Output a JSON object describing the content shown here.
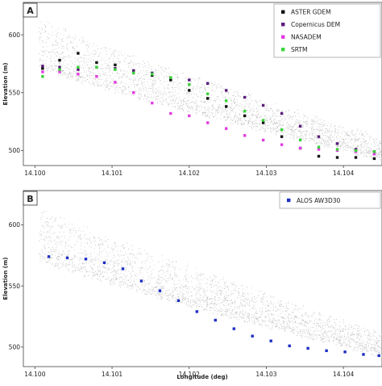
{
  "chart_data": [
    {
      "type": "scatter",
      "panel_label": "A",
      "ylabel": "Elevation (m)",
      "xlabel": "",
      "xlim": [
        14.09985,
        14.1045
      ],
      "ylim": [
        487,
        628
      ],
      "x_ticks": [
        "14.100",
        "14.101",
        "14.102",
        "14.103",
        "14.104"
      ],
      "y_ticks": [
        "500",
        "550",
        "600"
      ],
      "legend_position": "top-right",
      "series": [
        {
          "name": "ASTER GDEM",
          "color": "#111111",
          "points": [
            [
              14.1001,
              571
            ],
            [
              14.10032,
              578
            ],
            [
              14.10056,
              584
            ],
            [
              14.1008,
              576
            ],
            [
              14.10104,
              574
            ],
            [
              14.10128,
              569
            ],
            [
              14.10152,
              565
            ],
            [
              14.10176,
              561
            ],
            [
              14.102,
              552
            ],
            [
              14.10224,
              545
            ],
            [
              14.10248,
              538
            ],
            [
              14.10272,
              530
            ],
            [
              14.10296,
              524
            ],
            [
              14.1032,
              512
            ],
            [
              14.10344,
              502
            ],
            [
              14.10368,
              495
            ],
            [
              14.10392,
              494
            ],
            [
              14.10416,
              494
            ],
            [
              14.1044,
              493
            ]
          ]
        },
        {
          "name": "Copernicus DEM",
          "color": "#5a1c7a",
          "points": [
            [
              14.1001,
              573
            ],
            [
              14.10032,
              572
            ],
            [
              14.10056,
              570
            ],
            [
              14.1008,
              572
            ],
            [
              14.10104,
              571
            ],
            [
              14.10128,
              569
            ],
            [
              14.10152,
              567
            ],
            [
              14.10176,
              563
            ],
            [
              14.102,
              561
            ],
            [
              14.10224,
              558
            ],
            [
              14.10248,
              552
            ],
            [
              14.10272,
              546
            ],
            [
              14.10296,
              539
            ],
            [
              14.1032,
              532
            ],
            [
              14.10344,
              521
            ],
            [
              14.10368,
              512
            ],
            [
              14.10392,
              506
            ],
            [
              14.10416,
              501
            ],
            [
              14.1044,
              499
            ]
          ]
        },
        {
          "name": "NASADEM",
          "color": "#e23ce0",
          "points": [
            [
              14.1001,
              568
            ],
            [
              14.10032,
              568
            ],
            [
              14.10056,
              566
            ],
            [
              14.1008,
              564
            ],
            [
              14.10104,
              559
            ],
            [
              14.10128,
              550
            ],
            [
              14.10152,
              541
            ],
            [
              14.10176,
              532
            ],
            [
              14.102,
              530
            ],
            [
              14.10224,
              524
            ],
            [
              14.10248,
              519
            ],
            [
              14.10272,
              513
            ],
            [
              14.10296,
              509
            ],
            [
              14.1032,
              505
            ],
            [
              14.10344,
              502
            ],
            [
              14.10368,
              501
            ],
            [
              14.10392,
              500
            ],
            [
              14.10416,
              499
            ],
            [
              14.1044,
              497
            ]
          ]
        },
        {
          "name": "SRTM",
          "color": "#3ad43a",
          "points": [
            [
              14.1001,
              564
            ],
            [
              14.10032,
              570
            ],
            [
              14.10056,
              572
            ],
            [
              14.1008,
              572
            ],
            [
              14.10104,
              570
            ],
            [
              14.10128,
              567
            ],
            [
              14.10152,
              566
            ],
            [
              14.10176,
              563
            ],
            [
              14.102,
              557
            ],
            [
              14.10224,
              549
            ],
            [
              14.10248,
              543
            ],
            [
              14.10272,
              534
            ],
            [
              14.10296,
              526
            ],
            [
              14.1032,
              518
            ],
            [
              14.10344,
              509
            ],
            [
              14.10368,
              503
            ],
            [
              14.10392,
              501
            ],
            [
              14.10416,
              500
            ],
            [
              14.1044,
              499
            ]
          ]
        }
      ]
    },
    {
      "type": "scatter",
      "panel_label": "B",
      "ylabel": "Elevation (m)",
      "xlabel": "Longitude (deg)",
      "xlim": [
        14.09985,
        14.1045
      ],
      "ylim": [
        484,
        628
      ],
      "x_ticks": [
        "14.100",
        "14.101",
        "14.102",
        "14.103",
        "14.104"
      ],
      "y_ticks": [
        "500",
        "550",
        "600"
      ],
      "legend_position": "top-right",
      "series": [
        {
          "name": "ALOS AW3D30",
          "color": "#1f2fc4",
          "points": [
            [
              14.10018,
              574
            ],
            [
              14.10042,
              573
            ],
            [
              14.10066,
              572
            ],
            [
              14.1009,
              569
            ],
            [
              14.10114,
              564
            ],
            [
              14.10138,
              554
            ],
            [
              14.10162,
              546
            ],
            [
              14.10186,
              538
            ],
            [
              14.1021,
              529
            ],
            [
              14.10234,
              522
            ],
            [
              14.10258,
              515
            ],
            [
              14.10282,
              509
            ],
            [
              14.10306,
              505
            ],
            [
              14.1033,
              501
            ],
            [
              14.10354,
              499
            ],
            [
              14.10378,
              497
            ],
            [
              14.10402,
              496
            ],
            [
              14.10426,
              494
            ],
            [
              14.10446,
              493
            ]
          ]
        }
      ]
    }
  ]
}
